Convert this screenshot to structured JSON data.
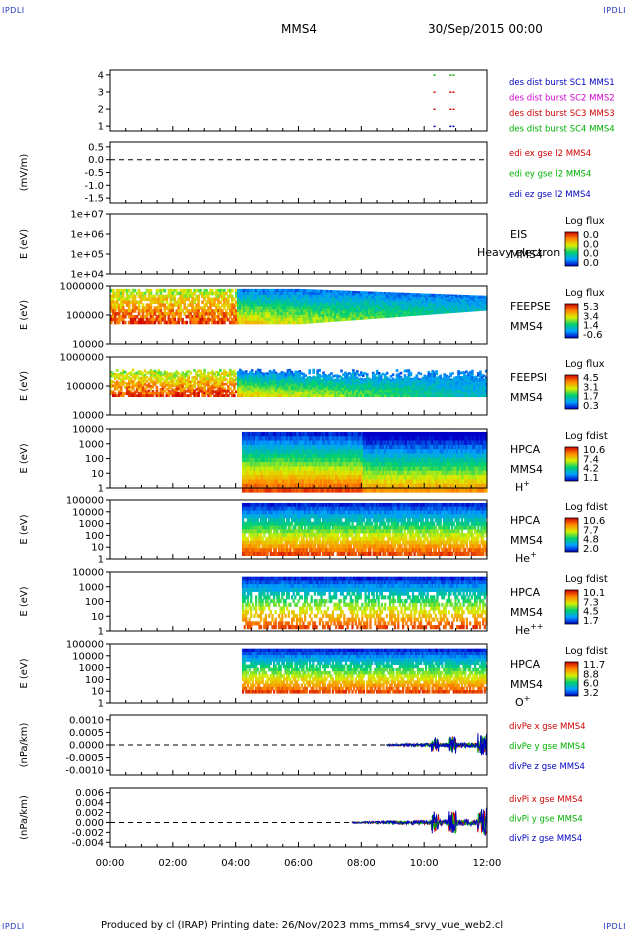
{
  "corners": {
    "tl": "IPDLI",
    "tr": "IPDLI",
    "bl": "IPDLI",
    "br": "IPDLI"
  },
  "header": {
    "spacecraft": "MMS4",
    "date": "30/Sep/2015 00:00"
  },
  "footer": {
    "text": "Produced by cl (IRAP)   Printing date: 26/Nov/2023   mms_mms4_srvy_vue_web2.cl"
  },
  "time_axis": {
    "ticks": [
      "00:00",
      "02:00",
      "04:00",
      "06:00",
      "08:00",
      "10:00",
      "12:00"
    ],
    "start_hours": 0,
    "end_hours": 12
  },
  "colors": {
    "red": "#d00000",
    "magenta": "#d000d0",
    "green": "#00b000",
    "blue": "#0000c0"
  },
  "chart_data": [
    {
      "id": "des-dist-burst",
      "type": "scatter",
      "yticks": [
        "4",
        "3",
        "2",
        "1"
      ],
      "ylim": [
        0.5,
        4.5
      ],
      "legend": [
        {
          "text": "des dist burst SC1 MMS1",
          "color": "#0000c0"
        },
        {
          "text": "des dist burst SC2 MMS2",
          "color": "#d000d0"
        },
        {
          "text": "des dist burst SC3 MMS3",
          "color": "#d00000"
        },
        {
          "text": "des dist burst SC4 MMS4",
          "color": "#00b000"
        }
      ]
    },
    {
      "id": "edi-e",
      "type": "line",
      "ylabel": "(mV/m)",
      "yticks": [
        "0.5",
        "0.0",
        "-0.5",
        "-1.0",
        "-1.5"
      ],
      "ylim": [
        -1.9,
        0.8
      ],
      "legend": [
        {
          "text": "edi ex gse l2 MMS4",
          "color": "#d00000"
        },
        {
          "text": "edi ey gse l2 MMS4",
          "color": "#00b000"
        },
        {
          "text": "edi ez gse l2 MMS4",
          "color": "#0000c0"
        }
      ]
    },
    {
      "id": "eis",
      "type": "heatmap",
      "ylabel": "E (eV)",
      "yticks": [
        "1e+07",
        "1e+06",
        "1e+05",
        "1e+04"
      ],
      "side_label": [
        "EIS",
        "MMS4"
      ],
      "overlay_text": "Heavy electron to",
      "colorbar": {
        "title": "Log flux",
        "ticks": [
          "0.0",
          "0.0",
          "0.0",
          "0.0"
        ]
      }
    },
    {
      "id": "feepse",
      "type": "heatmap",
      "ylabel": "E (eV)",
      "yticks": [
        "1000000",
        "100000",
        "10000"
      ],
      "side_label": [
        "FEEPSE",
        "MMS4"
      ],
      "colorbar": {
        "title": "Log flux",
        "ticks": [
          "5.3",
          "3.4",
          "1.4",
          "-0.6"
        ]
      }
    },
    {
      "id": "feepsi",
      "type": "heatmap",
      "ylabel": "E (eV)",
      "yticks": [
        "1000000",
        "100000",
        "10000"
      ],
      "side_label": [
        "FEEPSI",
        "MMS4"
      ],
      "colorbar": {
        "title": "Log flux",
        "ticks": [
          "4.5",
          "3.1",
          "1.7",
          "0.3"
        ]
      }
    },
    {
      "id": "hpca-h",
      "type": "heatmap",
      "ylabel": "E (eV)",
      "yticks": [
        "10000",
        "1000",
        "100",
        "10",
        "1"
      ],
      "side_label": [
        "HPCA",
        "MMS4"
      ],
      "species": {
        "base": "H",
        "sup": "+"
      },
      "colorbar": {
        "title": "Log fdist",
        "ticks": [
          "10.6",
          "7.4",
          "4.2",
          "1.1"
        ]
      }
    },
    {
      "id": "hpca-he",
      "type": "heatmap",
      "ylabel": "E (eV)",
      "yticks": [
        "100000",
        "10000",
        "1000",
        "100",
        "10",
        "1"
      ],
      "side_label": [
        "HPCA",
        "MMS4"
      ],
      "species": {
        "base": "He",
        "sup": "+"
      },
      "colorbar": {
        "title": "Log fdist",
        "ticks": [
          "10.6",
          "7.7",
          "4.8",
          "2.0"
        ]
      }
    },
    {
      "id": "hpca-hepp",
      "type": "heatmap",
      "ylabel": "E (eV)",
      "yticks": [
        "10000",
        "1000",
        "100",
        "10",
        "1"
      ],
      "side_label": [
        "HPCA",
        "MMS4"
      ],
      "species": {
        "base": "He",
        "sup": "++"
      },
      "colorbar": {
        "title": "Log fdist",
        "ticks": [
          "10.1",
          "7.3",
          "4.5",
          "1.7"
        ]
      }
    },
    {
      "id": "hpca-o",
      "type": "heatmap",
      "ylabel": "E (eV)",
      "yticks": [
        "100000",
        "10000",
        "1000",
        "100",
        "10",
        "1"
      ],
      "side_label": [
        "HPCA",
        "MMS4"
      ],
      "species": {
        "base": "O",
        "sup": "+"
      },
      "colorbar": {
        "title": "Log fdist",
        "ticks": [
          "11.7",
          "8.8",
          "6.0",
          "3.2"
        ]
      }
    },
    {
      "id": "divpe",
      "type": "line",
      "ylabel": "(nPa/km)",
      "yticks": [
        "0.0010",
        "0.0005",
        "0.0000",
        "-0.0005",
        "-0.0010"
      ],
      "ylim": [
        -0.0012,
        0.0012
      ],
      "legend": [
        {
          "text": "divPe x gse MMS4",
          "color": "#d00000"
        },
        {
          "text": "divPe y gse MMS4",
          "color": "#00b000"
        },
        {
          "text": "divPe z gse MMS4",
          "color": "#0000c0"
        }
      ]
    },
    {
      "id": "divpi",
      "type": "line",
      "ylabel": "(nPa/km)",
      "yticks": [
        "0.006",
        "0.004",
        "0.002",
        "0.000",
        "-0.002",
        "-0.004"
      ],
      "ylim": [
        -0.005,
        0.007
      ],
      "legend": [
        {
          "text": "divPi x gse MMS4",
          "color": "#d00000"
        },
        {
          "text": "divPi y gse MMS4",
          "color": "#00b000"
        },
        {
          "text": "divPi z gse MMS4",
          "color": "#0000c0"
        }
      ]
    }
  ]
}
